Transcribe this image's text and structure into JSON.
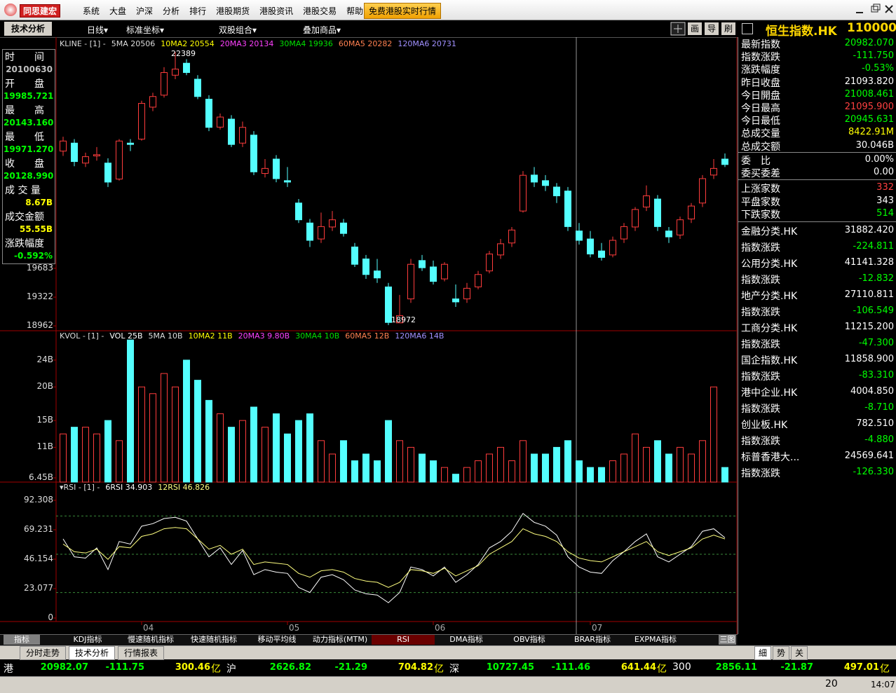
{
  "menu": {
    "logo": "同思建宏",
    "items": [
      "系统",
      "大盘",
      "沪深",
      "分析",
      "排行",
      "港股期货",
      "港股资讯",
      "港股交易",
      "帮助"
    ],
    "promo": "免费港股实时行情"
  },
  "toolbar": {
    "tab": "技术分析",
    "dropdowns": [
      "日线▾",
      "标准坐标▾",
      "双股组合▾",
      "叠加商品▾"
    ],
    "buttons": [
      "画",
      "导",
      "刷"
    ]
  },
  "kline": {
    "header": "KLINE  - [1] -",
    "ma": [
      {
        "text": "5MA 20506",
        "color": "#dcdcdc"
      },
      {
        "text": "10MA2 20554",
        "color": "#ffff00"
      },
      {
        "text": "20MA3 20134",
        "color": "#ff40ff"
      },
      {
        "text": "30MA4 19936",
        "color": "#00e000"
      },
      {
        "text": "60MA5 20282",
        "color": "#ff8050"
      },
      {
        "text": "120MA6 20731",
        "color": "#a090ff"
      }
    ],
    "ylim": [
      18919,
      22550
    ],
    "yticks": [
      18962,
      19322,
      19683
    ],
    "up_color": "#ff3c3c",
    "down_color": "#54ffff",
    "candles": [
      [
        21150,
        21330,
        21090,
        21276
      ],
      [
        21250,
        21300,
        20960,
        21019
      ],
      [
        21000,
        21130,
        20950,
        21080
      ],
      [
        21090,
        21200,
        21030,
        21105
      ],
      [
        21000,
        21060,
        20700,
        20762
      ],
      [
        20800,
        21300,
        20780,
        21276
      ],
      [
        21250,
        21300,
        21150,
        21233
      ],
      [
        21300,
        21780,
        21280,
        21747
      ],
      [
        21700,
        21880,
        21650,
        21833
      ],
      [
        21850,
        22200,
        21820,
        22133
      ],
      [
        22100,
        22389,
        22050,
        22176
      ],
      [
        22250,
        22300,
        22100,
        22133
      ],
      [
        22050,
        22100,
        21800,
        21833
      ],
      [
        21800,
        21850,
        21400,
        21447
      ],
      [
        21450,
        21620,
        21420,
        21576
      ],
      [
        21550,
        21600,
        21200,
        21233
      ],
      [
        21250,
        21520,
        21200,
        21447
      ],
      [
        21350,
        21400,
        20850,
        20890
      ],
      [
        20870,
        21050,
        20820,
        20933
      ],
      [
        21050,
        21100,
        20760,
        20805
      ],
      [
        20780,
        20950,
        20700,
        20762
      ],
      [
        20500,
        20550,
        20250,
        20290
      ],
      [
        20250,
        20300,
        19950,
        20033
      ],
      [
        20050,
        20380,
        20000,
        20205
      ],
      [
        20200,
        20400,
        20150,
        20290
      ],
      [
        20250,
        20300,
        20080,
        20119
      ],
      [
        19950,
        20000,
        19700,
        19733
      ],
      [
        19800,
        19850,
        19550,
        19605
      ],
      [
        19650,
        19800,
        19500,
        19562
      ],
      [
        19450,
        19500,
        18972,
        19005
      ],
      [
        19000,
        19350,
        19000,
        19091
      ],
      [
        19300,
        19800,
        19250,
        19733
      ],
      [
        19780,
        19850,
        19650,
        19690
      ],
      [
        19700,
        19780,
        19480,
        19519
      ],
      [
        19550,
        19760,
        19520,
        19733
      ],
      [
        19300,
        19480,
        19200,
        19262
      ],
      [
        19300,
        19500,
        19250,
        19433
      ],
      [
        19450,
        19650,
        19420,
        19605
      ],
      [
        19650,
        19900,
        19620,
        19862
      ],
      [
        19850,
        20050,
        19800,
        19990
      ],
      [
        20000,
        20200,
        19950,
        20162
      ],
      [
        20400,
        20900,
        20380,
        20847
      ],
      [
        20850,
        20950,
        20700,
        20762
      ],
      [
        20780,
        20850,
        20650,
        20719
      ],
      [
        20700,
        20750,
        20500,
        20590
      ],
      [
        20650,
        20700,
        20150,
        20205
      ],
      [
        20150,
        20250,
        19980,
        20033
      ],
      [
        20050,
        20150,
        19820,
        19862
      ],
      [
        19900,
        20000,
        19780,
        19819
      ],
      [
        19850,
        20080,
        19820,
        20033
      ],
      [
        20050,
        20250,
        20000,
        20205
      ],
      [
        20200,
        20450,
        20150,
        20419
      ],
      [
        20450,
        20720,
        20400,
        20590
      ],
      [
        20550,
        20600,
        20150,
        20205
      ],
      [
        20150,
        20200,
        20000,
        20076
      ],
      [
        20100,
        20330,
        20050,
        20290
      ],
      [
        20300,
        20500,
        20250,
        20462
      ],
      [
        20500,
        20850,
        20450,
        20805
      ],
      [
        20850,
        21050,
        20800,
        20933
      ],
      [
        21050,
        21120,
        20950,
        20982
      ]
    ],
    "annotations": {
      "high": 22389,
      "low": 18972
    },
    "date_ticks": [
      {
        "index": 7,
        "label": "04"
      },
      {
        "index": 20,
        "label": "05"
      },
      {
        "index": 33,
        "label": "06"
      },
      {
        "index": 47,
        "label": "07"
      }
    ]
  },
  "info": [
    {
      "label": "时　　间",
      "value": "20100630",
      "color": "#c0c0c0"
    },
    {
      "label": "开　　盘",
      "value": "19985.721",
      "color": "#00ff00"
    },
    {
      "label": "最　　高",
      "value": "20143.160",
      "color": "#00ff00"
    },
    {
      "label": "最　　低",
      "value": "19971.270",
      "color": "#00ff00"
    },
    {
      "label": "收　　盘",
      "value": "20128.990",
      "color": "#00ff00"
    },
    {
      "label": "成 交 量",
      "value": "8.67B",
      "color": "#ffff00"
    },
    {
      "label": "成交金额",
      "value": "55.55B",
      "color": "#ffff00"
    },
    {
      "label": "涨跌幅度",
      "value": "-0.592%",
      "color": "#00ff00"
    }
  ],
  "kvol": {
    "header": "KVOL  - [1] -",
    "ma": [
      {
        "text": "VOL 25B",
        "color": "#ffffff"
      },
      {
        "text": "5MA 10B",
        "color": "#dcdcdc"
      },
      {
        "text": "10MA2 11B",
        "color": "#ffff00"
      },
      {
        "text": "20MA3 9.80B",
        "color": "#ff40ff"
      },
      {
        "text": "30MA4 10B",
        "color": "#00e000"
      },
      {
        "text": "60MA5 12B",
        "color": "#ff8050"
      },
      {
        "text": "120MA6 14B",
        "color": "#a090ff"
      }
    ],
    "ylim": [
      5.82,
      26.6
    ],
    "yticks": [
      {
        "value": 6.45,
        "label": "6.45B"
      },
      {
        "value": 11,
        "label": "11B"
      },
      {
        "value": 15,
        "label": "15B"
      },
      {
        "value": 20,
        "label": "20B"
      },
      {
        "value": 24,
        "label": "24B"
      }
    ],
    "values": [
      13,
      14,
      14,
      13,
      15,
      12,
      27,
      20,
      19,
      22,
      20,
      24,
      21,
      18,
      16,
      14,
      15,
      17,
      14,
      16,
      13,
      15,
      16,
      12,
      10,
      12,
      9,
      10,
      9,
      15,
      12,
      11,
      10,
      9,
      8,
      7,
      8,
      9,
      10,
      11,
      9,
      12,
      10,
      10,
      11,
      12,
      9,
      8,
      8,
      9,
      10,
      13,
      11,
      12,
      10,
      11,
      10,
      12,
      20,
      8
    ]
  },
  "rsi": {
    "header": "▾RSI  - [1] -",
    "ma": [
      {
        "text": "6RSI 34.903",
        "color": "#ffffff"
      },
      {
        "text": "12RSI 46.826",
        "color": "#ffff80"
      }
    ],
    "ylim": [
      0,
      96.7
    ],
    "yticks": [
      0,
      23.077,
      46.154,
      69.231,
      92.308
    ],
    "levels": [
      80,
      50,
      20
    ],
    "series": [
      {
        "color": "#ffffff",
        "values": [
          62,
          48,
          47,
          55,
          38,
          60,
          58,
          72,
          74,
          78,
          79,
          76,
          62,
          48,
          55,
          42,
          53,
          34,
          38,
          36,
          35,
          24,
          20,
          32,
          34,
          30,
          22,
          19,
          18,
          12,
          20,
          40,
          38,
          33,
          40,
          28,
          34,
          42,
          55,
          60,
          68,
          82,
          75,
          72,
          65,
          48,
          40,
          36,
          35,
          45,
          52,
          60,
          66,
          48,
          44,
          50,
          56,
          68,
          70,
          63
        ]
      },
      {
        "color": "#ffff80",
        "values": [
          58,
          52,
          51,
          54,
          46,
          56,
          55,
          64,
          66,
          70,
          71,
          70,
          62,
          54,
          57,
          50,
          54,
          42,
          44,
          43,
          42,
          35,
          32,
          37,
          38,
          36,
          31,
          29,
          28,
          24,
          28,
          38,
          37,
          35,
          39,
          33,
          37,
          41,
          50,
          55,
          60,
          70,
          66,
          64,
          60,
          52,
          47,
          45,
          44,
          48,
          52,
          56,
          60,
          52,
          49,
          52,
          55,
          62,
          65,
          62
        ]
      }
    ]
  },
  "quote": {
    "title": "恒生指数.HK",
    "code": "110000",
    "rows": [
      {
        "label": "最新指数",
        "value": "20982.070",
        "color": "#00ff00"
      },
      {
        "label": "指数涨跌",
        "value": "-111.750",
        "color": "#00ff00"
      },
      {
        "label": "涨跌幅度",
        "value": "-0.53%",
        "color": "#00ff00"
      },
      {
        "label": "昨日收盘",
        "value": "21093.820",
        "color": "#ffffff"
      },
      {
        "label": "今日開盘",
        "value": "21008.461",
        "color": "#00ff00"
      },
      {
        "label": "今日最高",
        "value": "21095.900",
        "color": "#ff4040"
      },
      {
        "label": "今日最低",
        "value": "20945.631",
        "color": "#00ff00"
      },
      {
        "label": "总成交量",
        "value": "8422.91M",
        "color": "#ffff00"
      },
      {
        "label": "总成交额",
        "value": "30.046B",
        "color": "#ffffff"
      }
    ],
    "ratio": [
      {
        "label": "委　比",
        "value": "0.00%",
        "color": "#ffffff"
      },
      {
        "label": "委买委差",
        "value": "0.00",
        "color": "#ffffff"
      }
    ],
    "breadth": [
      {
        "label": "上涨家数",
        "value": "332",
        "color": "#ff4040"
      },
      {
        "label": "平盘家数",
        "value": "343",
        "color": "#ffffff"
      },
      {
        "label": "下跌家数",
        "value": "514",
        "color": "#00ff00"
      }
    ],
    "sectors": [
      {
        "label": "金融分类.HK",
        "value": "31882.420",
        "color": "#ffffff"
      },
      {
        "label": "指数涨跌",
        "value": "-224.811",
        "color": "#00ff00"
      },
      {
        "label": "公用分类.HK",
        "value": "41141.328",
        "color": "#ffffff"
      },
      {
        "label": "指数涨跌",
        "value": "-12.832",
        "color": "#00ff00"
      },
      {
        "label": "地产分类.HK",
        "value": "27110.811",
        "color": "#ffffff"
      },
      {
        "label": "指数涨跌",
        "value": "-106.549",
        "color": "#00ff00"
      },
      {
        "label": "工商分类.HK",
        "value": "11215.200",
        "color": "#ffffff"
      },
      {
        "label": "指数涨跌",
        "value": "-47.300",
        "color": "#00ff00"
      },
      {
        "label": "国企指数.HK",
        "value": "11858.900",
        "color": "#ffffff"
      },
      {
        "label": "指数涨跌",
        "value": "-83.310",
        "color": "#00ff00"
      },
      {
        "label": "港中企业.HK",
        "value": "4004.850",
        "color": "#ffffff"
      },
      {
        "label": "指数涨跌",
        "value": "-8.710",
        "color": "#00ff00"
      },
      {
        "label": "创业板.HK",
        "value": "782.510",
        "color": "#ffffff"
      },
      {
        "label": "指数涨跌",
        "value": "-4.880",
        "color": "#00ff00"
      },
      {
        "label": "标普香港大...",
        "value": "24569.641",
        "color": "#ffffff"
      },
      {
        "label": "指数涨跌",
        "value": "-126.330",
        "color": "#00ff00"
      }
    ]
  },
  "indicator_tabs": {
    "label": "指标",
    "tabs": [
      "KDJ指标",
      "慢速随机指标",
      "快速随机指标",
      "移动平均线",
      "动力指标(MTM)",
      "RSI",
      "DMA指标",
      "OBV指标",
      "BRAR指标",
      "EXPMA指标"
    ],
    "active": "RSI",
    "extra": "三图"
  },
  "view_tabs": {
    "tabs": [
      "分时走势",
      "技术分析",
      "行情报表"
    ],
    "active": "技术分析",
    "right": [
      "細",
      "势",
      "关"
    ]
  },
  "status": [
    {
      "market": "港",
      "price": "20982.07",
      "change": "-111.75",
      "amount": "300.46",
      "unit": "亿"
    },
    {
      "market": "沪",
      "price": "2626.82",
      "change": "-21.29",
      "amount": "704.82",
      "unit": "亿"
    },
    {
      "market": "深",
      "price": "10727.45",
      "change": "-111.46",
      "amount": "641.44",
      "unit": "亿"
    },
    {
      "market": "300",
      "price": "2856.11",
      "change": "-21.87",
      "amount": "497.01",
      "unit": "亿"
    }
  ],
  "clock": {
    "partial": "20",
    "time": "14:07"
  }
}
